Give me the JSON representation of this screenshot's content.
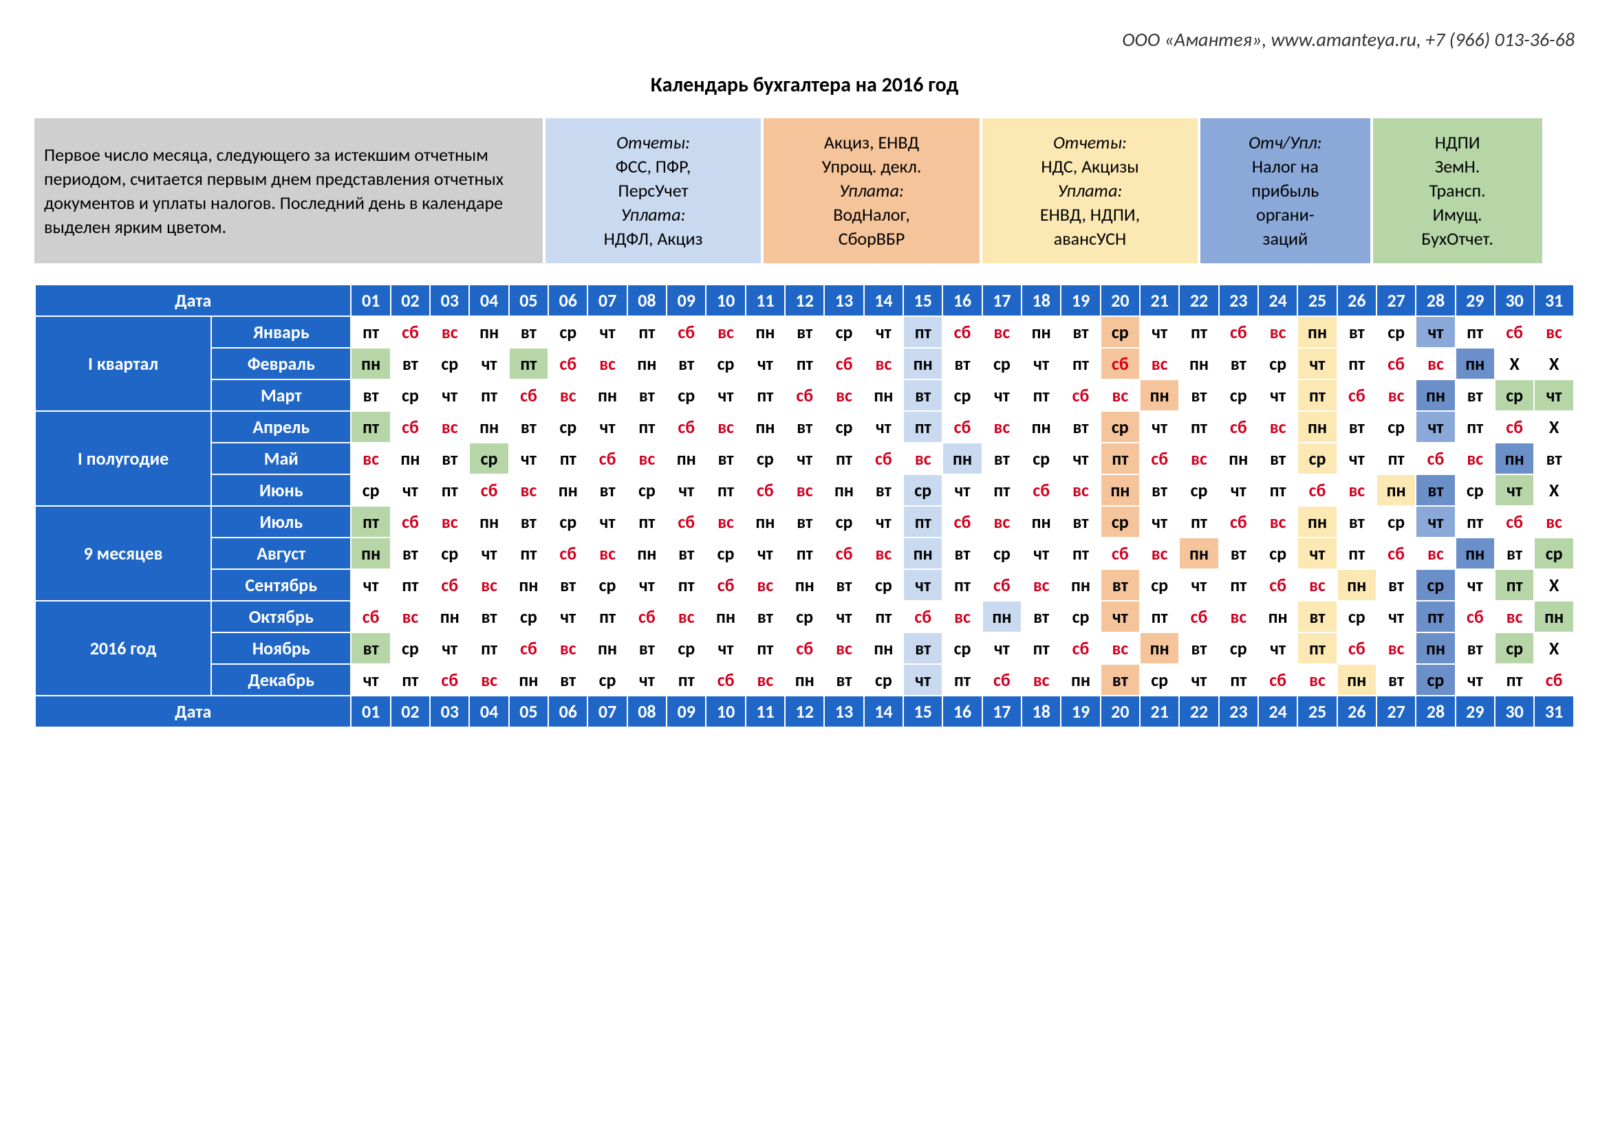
{
  "company_line": "ООО «Амантея», www.amanteya.ru, +7 (966) 013-36-68",
  "title": "Календарь бухгалтера на 2016 год",
  "date_label": "Дата",
  "colors": {
    "header_bg": "#1f66c7",
    "header_fg": "#ffffff",
    "weekday_fg": "#000000",
    "weekend_fg": "#d2001f",
    "legend_intro_bg": "#cfcfcf",
    "legend_lightblue_bg": "#c9daf0",
    "legend_orange_bg": "#f5c49b",
    "legend_yellow_bg": "#fbe8b3",
    "legend_blue_bg": "#8aa8d8",
    "legend_green_bg": "#b6d6a7",
    "hl_lightblue": "#c9daf0",
    "hl_orange": "#f5c49b",
    "hl_yellow": "#fbe8b3",
    "hl_blue": "#8aa8d8",
    "hl_bluedeep": "#6b8fc9",
    "hl_green": "#b6d6a7"
  },
  "legend": [
    {
      "bg": "legend_intro_bg",
      "width": "33%",
      "cls": "intro",
      "lines": [
        "Первое число месяца, следующего за истекшим отчетным периодом, считается первым днем представления отчетных документов и уплаты налогов. Последний день в календаре выделен ярким цветом."
      ]
    },
    {
      "bg": "legend_lightblue_bg",
      "width": "14%",
      "lines": [
        "<i>Отчеты:</i>",
        "ФСС, ПФР,",
        "ПерсУчет",
        "<i>Уплата:</i>",
        "НДФЛ, Акциз"
      ]
    },
    {
      "bg": "legend_orange_bg",
      "width": "14%",
      "lines": [
        "Акциз, ЕНВД",
        "Упрощ. декл.",
        "<i>Уплата:</i>",
        "ВодНалог,",
        "СборВБР"
      ]
    },
    {
      "bg": "legend_yellow_bg",
      "width": "14%",
      "lines": [
        "<i>Отчеты:</i>",
        "НДС, Акцизы",
        "<i>Уплата:</i>",
        "ЕНВД, НДПИ,",
        "авансУСН"
      ]
    },
    {
      "bg": "legend_blue_bg",
      "width": "11%",
      "lines": [
        "<i>Отч/Упл:</i>",
        "Налог на",
        "прибыль",
        "органи-",
        "заций"
      ]
    },
    {
      "bg": "legend_green_bg",
      "width": "11%",
      "lines": [
        "НДПИ",
        "ЗемН.",
        "Трансп.",
        "Имущ.",
        "БухОтчет."
      ]
    }
  ],
  "day_numbers": [
    "01",
    "02",
    "03",
    "04",
    "05",
    "06",
    "07",
    "08",
    "09",
    "10",
    "11",
    "12",
    "13",
    "14",
    "15",
    "16",
    "17",
    "18",
    "19",
    "20",
    "21",
    "22",
    "23",
    "24",
    "25",
    "26",
    "27",
    "28",
    "29",
    "30",
    "31"
  ],
  "periods": [
    {
      "label": "I квартал",
      "months": [
        "Январь",
        "Февраль",
        "Март"
      ]
    },
    {
      "label": "I полугодие",
      "months": [
        "Апрель",
        "Май",
        "Июнь"
      ]
    },
    {
      "label": "9 месяцев",
      "months": [
        "Июль",
        "Август",
        "Сентябрь"
      ]
    },
    {
      "label": "2016 год",
      "months": [
        "Октябрь",
        "Ноябрь",
        "Декабрь"
      ]
    }
  ],
  "dow": [
    "пн",
    "вт",
    "ср",
    "чт",
    "пт",
    "сб",
    "вс"
  ],
  "months": [
    {
      "start": 4,
      "len": 31,
      "hl": {
        "15": "hl_lightblue",
        "20": "hl_orange",
        "25": "hl_yellow",
        "28": "hl_blue"
      }
    },
    {
      "start": 0,
      "len": 29,
      "hl": {
        "1": "hl_green",
        "5": "hl_green",
        "15": "hl_lightblue",
        "20": "hl_orange",
        "25": "hl_yellow",
        "29": "hl_bluedeep"
      }
    },
    {
      "start": 1,
      "len": 31,
      "hl": {
        "15": "hl_lightblue",
        "21": "hl_orange",
        "25": "hl_yellow",
        "28": "hl_bluedeep",
        "30": "hl_green",
        "31": "hl_green"
      }
    },
    {
      "start": 4,
      "len": 30,
      "hl": {
        "1": "hl_green",
        "15": "hl_lightblue",
        "20": "hl_orange",
        "25": "hl_yellow",
        "28": "hl_blue"
      }
    },
    {
      "start": 6,
      "len": 31,
      "hl": {
        "4": "hl_green",
        "16": "hl_lightblue",
        "20": "hl_orange",
        "25": "hl_yellow",
        "30": "hl_bluedeep"
      }
    },
    {
      "start": 2,
      "len": 30,
      "hl": {
        "15": "hl_lightblue",
        "20": "hl_orange",
        "27": "hl_yellow",
        "28": "hl_bluedeep",
        "30": "hl_green"
      }
    },
    {
      "start": 4,
      "len": 31,
      "hl": {
        "1": "hl_green",
        "15": "hl_lightblue",
        "20": "hl_orange",
        "25": "hl_yellow",
        "28": "hl_blue"
      }
    },
    {
      "start": 0,
      "len": 31,
      "hl": {
        "1": "hl_green",
        "15": "hl_lightblue",
        "22": "hl_orange",
        "25": "hl_yellow",
        "29": "hl_bluedeep",
        "31": "hl_green"
      }
    },
    {
      "start": 3,
      "len": 30,
      "hl": {
        "15": "hl_lightblue",
        "20": "hl_orange",
        "26": "hl_yellow",
        "28": "hl_bluedeep",
        "30": "hl_green"
      }
    },
    {
      "start": 5,
      "len": 31,
      "hl": {
        "17": "hl_lightblue",
        "20": "hl_orange",
        "25": "hl_yellow",
        "28": "hl_bluedeep",
        "31": "hl_green"
      }
    },
    {
      "start": 1,
      "len": 30,
      "hl": {
        "1": "hl_green",
        "15": "hl_lightblue",
        "21": "hl_orange",
        "25": "hl_yellow",
        "28": "hl_bluedeep",
        "30": "hl_green"
      }
    },
    {
      "start": 3,
      "len": 31,
      "hl": {
        "15": "hl_lightblue",
        "20": "hl_orange",
        "26": "hl_yellow",
        "28": "hl_bluedeep"
      }
    }
  ]
}
